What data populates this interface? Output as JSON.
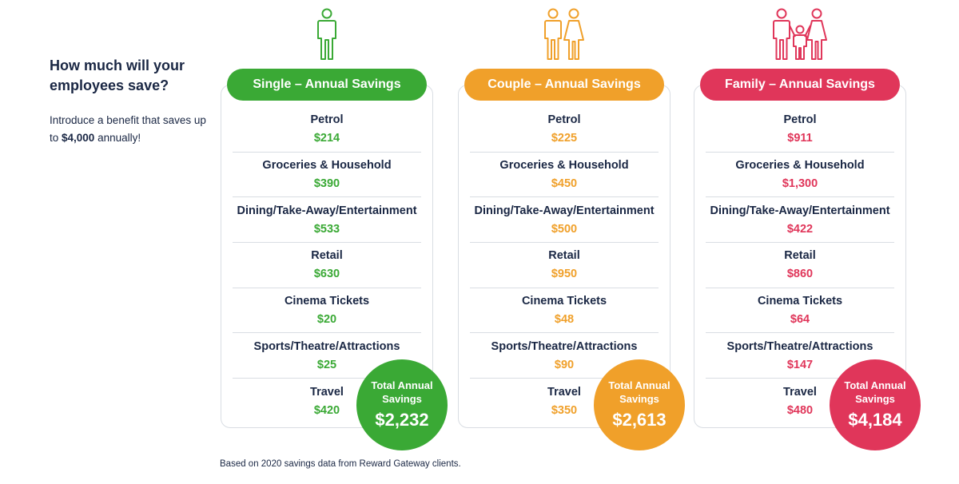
{
  "intro": {
    "heading": "How much will your employees save?",
    "body_prefix": "Introduce a benefit that saves up to ",
    "body_highlight": "$4,000",
    "body_suffix": " annually!"
  },
  "columns": [
    {
      "id": "single",
      "color": "#3aa935",
      "icon": "single-person-icon",
      "title": "Single – Annual Savings",
      "rows": [
        {
          "label": "Petrol",
          "value": "$214"
        },
        {
          "label": "Groceries & Household",
          "value": "$390"
        },
        {
          "label": "Dining/Take-Away/Entertainment",
          "value": "$533"
        },
        {
          "label": "Retail",
          "value": "$630"
        },
        {
          "label": "Cinema Tickets",
          "value": "$20"
        },
        {
          "label": "Sports/Theatre/Attractions",
          "value": "$25"
        },
        {
          "label": "Travel",
          "value": "$420"
        }
      ],
      "total_label": "Total Annual Savings",
      "total_amount": "$2,232"
    },
    {
      "id": "couple",
      "color": "#f0a02a",
      "icon": "couple-icon",
      "title": "Couple – Annual Savings",
      "rows": [
        {
          "label": "Petrol",
          "value": "$225"
        },
        {
          "label": "Groceries & Household",
          "value": "$450"
        },
        {
          "label": "Dining/Take-Away/Entertainment",
          "value": "$500"
        },
        {
          "label": "Retail",
          "value": "$950"
        },
        {
          "label": "Cinema Tickets",
          "value": "$48"
        },
        {
          "label": "Sports/Theatre/Attractions",
          "value": "$90"
        },
        {
          "label": "Travel",
          "value": "$350"
        }
      ],
      "total_label": "Total Annual Savings",
      "total_amount": "$2,613"
    },
    {
      "id": "family",
      "color": "#e0365a",
      "icon": "family-icon",
      "title": "Family – Annual Savings",
      "rows": [
        {
          "label": "Petrol",
          "value": "$911"
        },
        {
          "label": "Groceries & Household",
          "value": "$1,300"
        },
        {
          "label": "Dining/Take-Away/Entertainment",
          "value": "$422"
        },
        {
          "label": "Retail",
          "value": "$860"
        },
        {
          "label": "Cinema Tickets",
          "value": "$64"
        },
        {
          "label": "Sports/Theatre/Attractions",
          "value": "$147"
        },
        {
          "label": "Travel",
          "value": "$480"
        }
      ],
      "total_label": "Total Annual Savings",
      "total_amount": "$4,184"
    }
  ],
  "footnote": "Based on 2020 savings data from Reward Gateway clients."
}
